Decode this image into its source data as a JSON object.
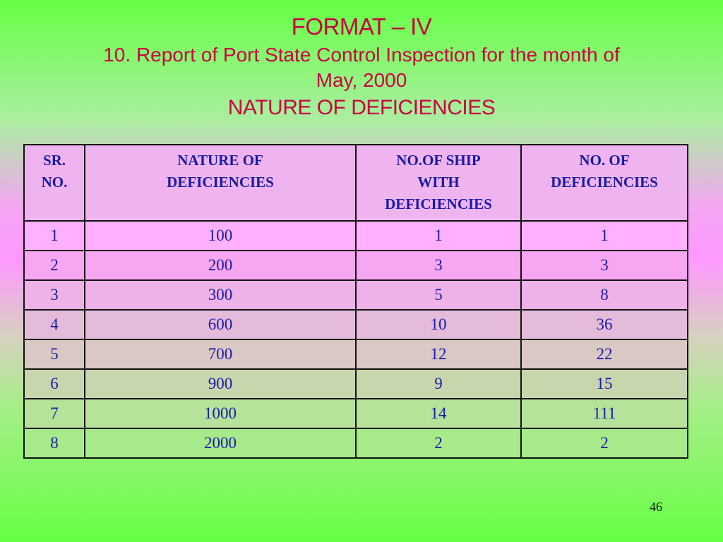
{
  "slide": {
    "format_title": "FORMAT – IV",
    "report_line1": "10. Report of Port State Control Inspection for the month of",
    "report_line2": "May, 2000",
    "nature_title": "NATURE OF DEFICIENCIES",
    "page_number": "46"
  },
  "table": {
    "headers": {
      "sr_line1": "SR.",
      "sr_line2": "NO.",
      "nature_line1": "NATURE OF",
      "nature_line2": "DEFICIENCIES",
      "ships_line1": "NO.OF SHIP",
      "ships_line2": "WITH",
      "ships_line3": "DEFICIENCIES",
      "defs_line1": "NO. OF",
      "defs_line2": "DEFICIENCIES"
    },
    "rows": [
      [
        "1",
        "100",
        "1",
        "1"
      ],
      [
        "2",
        "200",
        "3",
        "3"
      ],
      [
        "3",
        "300",
        "5",
        "8"
      ],
      [
        "4",
        "600",
        "10",
        "36"
      ],
      [
        "5",
        "700",
        "12",
        "22"
      ],
      [
        "6",
        "900",
        "9",
        "15"
      ],
      [
        "7",
        "1000",
        "14",
        "111"
      ],
      [
        "8",
        "2000",
        "2",
        "2"
      ]
    ]
  },
  "colors": {
    "title": "#cc0044",
    "table_text": "#1a1aa8",
    "background_top": "#66ff44",
    "background_middle": "#ff99ff"
  }
}
